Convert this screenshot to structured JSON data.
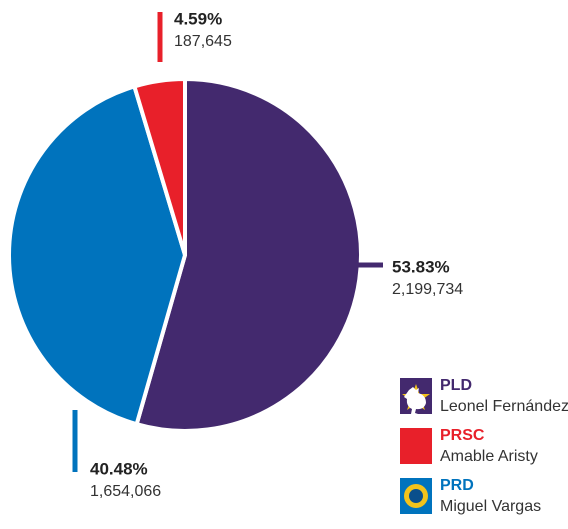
{
  "chart_data": {
    "type": "pie",
    "categories": [
      "PLD",
      "PRSC",
      "PRD"
    ],
    "candidates": [
      "Leonel Fernández",
      "Amable Aristy",
      "Miguel Vargas"
    ],
    "colors": [
      "#43296e",
      "#e8202a",
      "#0073bd"
    ],
    "values": [
      53.83,
      4.59,
      40.48
    ],
    "value_labels": [
      "53.83%",
      "4.59%",
      "40.48%"
    ],
    "votes": [
      2199734,
      187645,
      1654066
    ],
    "vote_labels": [
      "2,199,734",
      "187,645",
      "1,654,066"
    ]
  }
}
